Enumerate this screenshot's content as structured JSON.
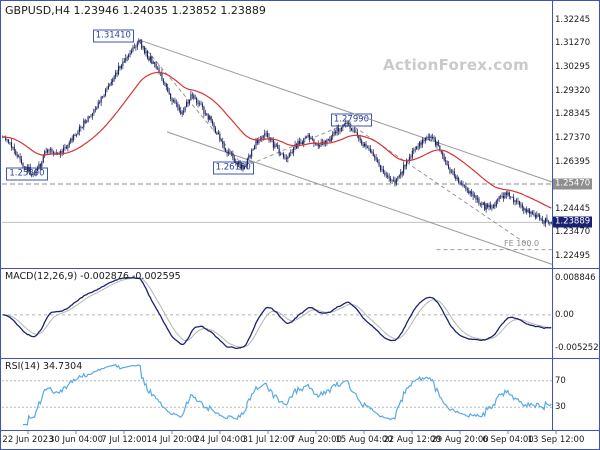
{
  "header": {
    "title": "GBPUSD,H4 1.23946 1.24035 1.23852 1.23889",
    "watermark": "ActionForex.com"
  },
  "colors": {
    "frame": "#3d55ae",
    "candle": "#171e5e",
    "ma": "#d83434",
    "macd_main": "#1a2170",
    "macd_signal": "#b5b5b5",
    "rsi": "#57aae6",
    "channel": "#9a9a9a",
    "dashed": "#8f8f8f",
    "level_box_bg": "#8f8f8f",
    "current_price_bg": "#1a2170",
    "watermark": "#cacaca"
  },
  "chart_data": [
    {
      "name": "price",
      "type": "line",
      "render_style": "candlestick",
      "symbol": "GBPUSD",
      "timeframe": "H4",
      "current_ohlc": {
        "open": "1.23946",
        "high": "1.24035",
        "low": "1.23852",
        "close": "1.23889"
      },
      "y_axis_ticks": [
        "1.32245",
        "1.31270",
        "1.30295",
        "1.29320",
        "1.28345",
        "1.27370",
        "1.26395",
        "1.25420",
        "1.24445",
        "1.23470",
        "1.22495"
      ],
      "y_range": [
        1.2217,
        1.32732
      ],
      "x_tick_labels": [
        "22 Jun 2023",
        "30 Jun 04:00",
        "7 Jul 12:00",
        "14 Jul 20:00",
        "24 Jul 04:00",
        "31 Jul 12:00",
        "7 Aug 20:00",
        "15 Aug 04:00",
        "22 Aug 12:00",
        "29 Aug 20:00",
        "6 Sep 04:00",
        "13 Sep 12:00"
      ],
      "candles_count": 380,
      "ma_period": 45,
      "price_path_anchors": [
        [
          0.0,
          1.2742
        ],
        [
          0.018,
          1.27
        ],
        [
          0.04,
          1.2612
        ],
        [
          0.058,
          1.2589
        ],
        [
          0.082,
          1.2692
        ],
        [
          0.102,
          1.2665
        ],
        [
          0.13,
          1.2742
        ],
        [
          0.16,
          1.283
        ],
        [
          0.192,
          1.2942
        ],
        [
          0.222,
          1.306
        ],
        [
          0.248,
          1.3141
        ],
        [
          0.266,
          1.3072
        ],
        [
          0.284,
          1.3015
        ],
        [
          0.306,
          1.2902
        ],
        [
          0.326,
          1.2846
        ],
        [
          0.346,
          1.2912
        ],
        [
          0.363,
          1.286
        ],
        [
          0.383,
          1.2792
        ],
        [
          0.403,
          1.2702
        ],
        [
          0.423,
          1.2642
        ],
        [
          0.44,
          1.2618
        ],
        [
          0.46,
          1.2716
        ],
        [
          0.478,
          1.2762
        ],
        [
          0.498,
          1.2696
        ],
        [
          0.516,
          1.2652
        ],
        [
          0.536,
          1.2706
        ],
        [
          0.556,
          1.2742
        ],
        [
          0.576,
          1.27
        ],
        [
          0.596,
          1.2732
        ],
        [
          0.616,
          1.2776
        ],
        [
          0.63,
          1.2799
        ],
        [
          0.648,
          1.2732
        ],
        [
          0.666,
          1.269
        ],
        [
          0.684,
          1.2632
        ],
        [
          0.7,
          1.2572
        ],
        [
          0.716,
          1.2548
        ],
        [
          0.733,
          1.2622
        ],
        [
          0.751,
          1.2692
        ],
        [
          0.768,
          1.2732
        ],
        [
          0.781,
          1.2746
        ],
        [
          0.796,
          1.2692
        ],
        [
          0.813,
          1.2612
        ],
        [
          0.831,
          1.2562
        ],
        [
          0.849,
          1.2512
        ],
        [
          0.866,
          1.2472
        ],
        [
          0.883,
          1.2446
        ],
        [
          0.901,
          1.2476
        ],
        [
          0.918,
          1.2512
        ],
        [
          0.936,
          1.2482
        ],
        [
          0.953,
          1.2442
        ],
        [
          0.97,
          1.2416
        ],
        [
          0.986,
          1.2398
        ],
        [
          1.0,
          1.2389
        ]
      ],
      "key_points": [
        {
          "f": 0.058,
          "price": 1.2589,
          "type": "low"
        },
        {
          "f": 0.248,
          "price": 1.3141,
          "type": "high"
        },
        {
          "f": 0.44,
          "price": 1.2618,
          "type": "low"
        },
        {
          "f": 0.63,
          "price": 1.2799,
          "type": "high"
        },
        {
          "f": 0.716,
          "price": 1.2547,
          "type": "low"
        }
      ],
      "levels": {
        "resistance": {
          "label": "1.25470",
          "value": 1.2547
        },
        "current": {
          "label": "1.23889",
          "value": 1.23889
        }
      },
      "annotations": {
        "price_labels": [
          {
            "text": "1.31410",
            "fx": 0.165,
            "price": 1.3158
          },
          {
            "text": "1.25890",
            "fx": 0.008,
            "price": 1.2589
          },
          {
            "text": "1.26180",
            "fx": 0.383,
            "price": 1.2612
          },
          {
            "text": "1.27990",
            "fx": 0.598,
            "price": 1.2812
          }
        ],
        "channel_lines": [
          [
            0.25,
            1.3141,
            1.02,
            1.254
          ],
          [
            0.3,
            1.2762,
            1.02,
            1.22
          ]
        ],
        "dashed_segments": [
          [
            0.248,
            1.3141,
            0.44,
            1.2618
          ],
          [
            0.44,
            1.2618,
            0.63,
            1.2799
          ],
          [
            0.63,
            1.2799,
            0.96,
            1.229
          ]
        ],
        "fe": {
          "label": "FE 100.0",
          "price": 1.2276,
          "from_f": 0.79
        }
      }
    },
    {
      "name": "macd",
      "type": "line",
      "label": "MACD(12,26,9) -0.002876 -0.002595",
      "params": {
        "fast": 12,
        "slow": 26,
        "signal": 9
      },
      "current_values": [
        -0.002876,
        -0.002595
      ],
      "y_ticks": [
        "0.008846",
        "0.00",
        "-0.005252"
      ],
      "axis_values": [
        0.008846,
        0,
        -0.005252
      ],
      "derived": "computed from price close series"
    },
    {
      "name": "rsi",
      "type": "line",
      "label": "RSI(14) 34.7304",
      "period": 14,
      "current_value": 34.7304,
      "levels": [
        70,
        30
      ],
      "level_labels": [
        "70",
        "30"
      ],
      "y_range": [
        0,
        100
      ],
      "derived": "computed from price close series"
    }
  ]
}
